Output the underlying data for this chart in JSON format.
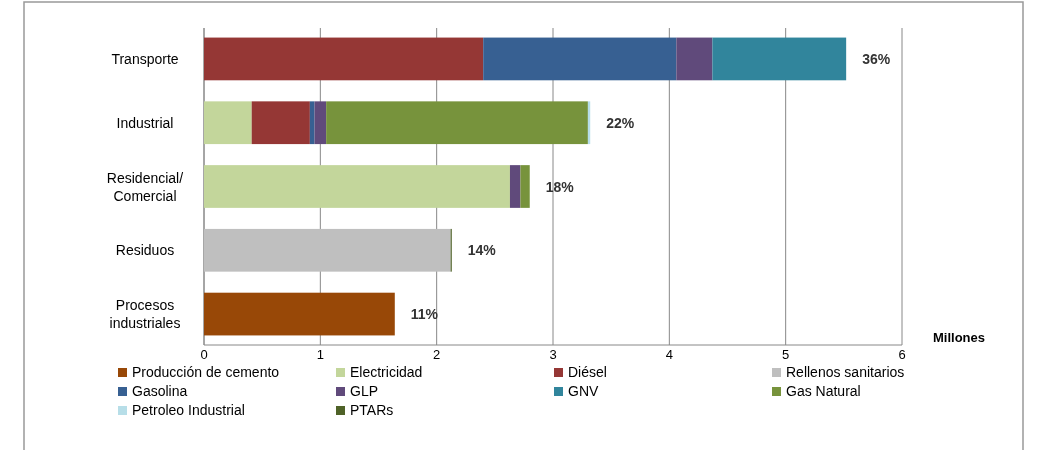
{
  "chart_data": {
    "type": "bar",
    "orientation": "horizontal",
    "stacked": true,
    "categories": [
      "Transporte",
      "Industrial",
      "Residencial/ Comercial",
      "Residuos",
      "Procesos industriales"
    ],
    "series": [
      {
        "name": "Producción de cemento",
        "color": "#984807",
        "values": [
          null,
          null,
          null,
          null,
          1.64
        ]
      },
      {
        "name": "Electricidad",
        "color": "#c3d69b",
        "values": [
          null,
          0.41,
          2.63,
          null,
          null
        ]
      },
      {
        "name": "Diésel",
        "color": "#953735",
        "values": [
          2.4,
          0.5,
          null,
          null,
          null
        ]
      },
      {
        "name": "Rellenos sanitarios",
        "color": "#bfbfbf",
        "values": [
          null,
          null,
          null,
          2.12,
          null
        ]
      },
      {
        "name": "Gasolina",
        "color": "#376092",
        "values": [
          1.66,
          0.04,
          null,
          null,
          null
        ]
      },
      {
        "name": "GLP",
        "color": "#604a7b",
        "values": [
          0.31,
          0.1,
          0.09,
          null,
          null
        ]
      },
      {
        "name": "GNV",
        "color": "#31859c",
        "values": [
          1.15,
          null,
          null,
          null,
          null
        ]
      },
      {
        "name": "Gas Natural",
        "color": "#77933c",
        "values": [
          null,
          2.25,
          0.08,
          null,
          null
        ]
      },
      {
        "name": "Petroleo Industrial",
        "color": "#b7dee8",
        "values": [
          null,
          0.02,
          null,
          null,
          null
        ]
      },
      {
        "name": "PTARs",
        "color": "#4f6228",
        "values": [
          null,
          null,
          null,
          0.01,
          null
        ]
      }
    ],
    "annotations": [
      {
        "text": "36%",
        "x": 5.52,
        "y": "Transporte"
      },
      {
        "text": "22%",
        "x": 3.32,
        "y": "Industrial"
      },
      {
        "text": "18%",
        "x": 2.8,
        "y": "Residencial/ Comercial"
      },
      {
        "text": "14%",
        "x": 2.13,
        "y": "Residuos"
      },
      {
        "text": "11%",
        "x": 1.64,
        "y": "Procesos industriales"
      }
    ],
    "xlabel": "Millones",
    "xlim": [
      0,
      6
    ],
    "xticks": [
      0,
      1,
      2,
      3,
      4,
      5,
      6
    ],
    "grid": "x",
    "legend": "bottom"
  }
}
